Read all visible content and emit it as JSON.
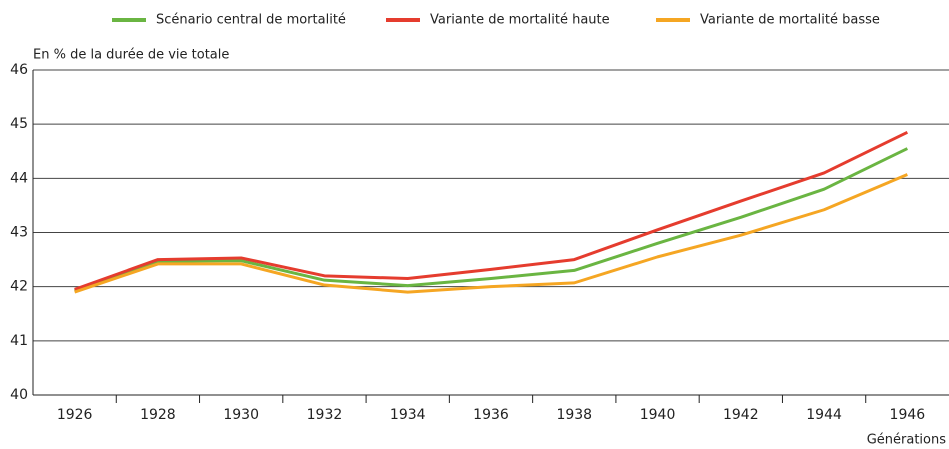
{
  "chart_data": {
    "type": "line",
    "y_label": "En % de la durée de vie totale",
    "x_label": "Générations",
    "categories": [
      "1926",
      "1928",
      "1930",
      "1932",
      "1934",
      "1936",
      "1938",
      "1940",
      "1942",
      "1944",
      "1946"
    ],
    "series": [
      {
        "name": "Scénario central de mortalité",
        "color": "#6ab542",
        "values": [
          41.92,
          42.47,
          42.48,
          42.12,
          42.02,
          42.15,
          42.3,
          42.8,
          43.28,
          43.8,
          44.55
        ]
      },
      {
        "name": "Variante de mortalité haute",
        "color": "#e53c2e",
        "values": [
          41.95,
          42.5,
          42.53,
          42.2,
          42.15,
          42.32,
          42.5,
          43.05,
          43.58,
          44.1,
          44.85
        ]
      },
      {
        "name": "Variante de mortalité basse",
        "color": "#f5a623",
        "values": [
          41.9,
          42.42,
          42.42,
          42.03,
          41.9,
          42.0,
          42.07,
          42.55,
          42.95,
          43.42,
          44.07
        ]
      }
    ],
    "ylim": [
      40,
      46
    ],
    "yticks": [
      40,
      41,
      42,
      43,
      44,
      45,
      46
    ],
    "grid": true
  }
}
